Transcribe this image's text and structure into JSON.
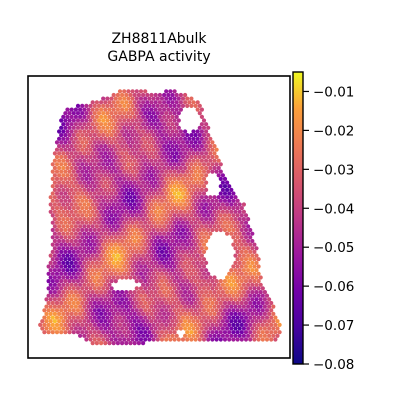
{
  "chart_data": {
    "type": "heatmap",
    "title_lines": [
      "ZH8811Abulk",
      "GABPA activity"
    ],
    "xlabel": "",
    "ylabel": "",
    "colormap": "plasma",
    "colorbar": {
      "range": [
        -0.08,
        -0.005
      ],
      "ticks": [
        -0.01,
        -0.02,
        -0.03,
        -0.04,
        -0.05,
        -0.06,
        -0.07,
        -0.08
      ],
      "tick_labels": [
        "−0.01",
        "−0.02",
        "−0.03",
        "−0.04",
        "−0.05",
        "−0.06",
        "−0.07",
        "−0.08"
      ],
      "placement": "right"
    },
    "grid": false,
    "axis_ticks": false
  }
}
